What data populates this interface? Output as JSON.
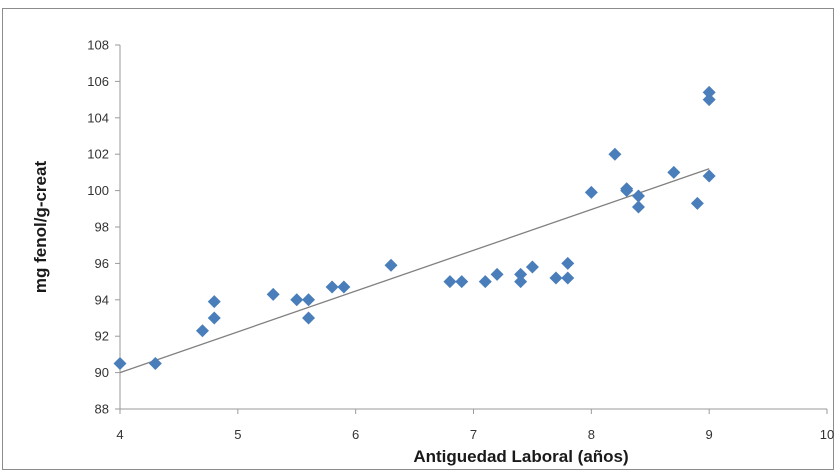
{
  "chart_data": {
    "type": "scatter",
    "title": "",
    "xlabel": "Antiguedad Laboral (años)",
    "ylabel": "mg fenol/g-creat",
    "xlim": [
      4,
      10
    ],
    "ylim": [
      88,
      108
    ],
    "x_ticks": [
      "4",
      "5",
      "6",
      "7",
      "8",
      "9",
      "10"
    ],
    "y_ticks": [
      "88",
      "90",
      "92",
      "94",
      "96",
      "98",
      "100",
      "102",
      "104",
      "106",
      "108"
    ],
    "grid": false,
    "legend": "none",
    "marker": "diamond",
    "marker_color": "#4a7ebb",
    "trendline": {
      "type": "linear",
      "from": [
        4,
        90.0
      ],
      "to": [
        9,
        101.2
      ],
      "color": "#808080"
    },
    "series": [
      {
        "points": [
          [
            4.0,
            90.5
          ],
          [
            4.3,
            90.5
          ],
          [
            4.7,
            92.3
          ],
          [
            4.8,
            93.0
          ],
          [
            4.8,
            93.9
          ],
          [
            5.3,
            94.3
          ],
          [
            5.5,
            94.0
          ],
          [
            5.6,
            94.0
          ],
          [
            5.6,
            93.0
          ],
          [
            5.8,
            94.7
          ],
          [
            5.9,
            94.7
          ],
          [
            6.3,
            95.9
          ],
          [
            6.8,
            95.0
          ],
          [
            6.9,
            95.0
          ],
          [
            7.1,
            95.0
          ],
          [
            7.2,
            95.4
          ],
          [
            7.4,
            95.4
          ],
          [
            7.4,
            95.0
          ],
          [
            7.5,
            95.8
          ],
          [
            7.7,
            95.2
          ],
          [
            7.8,
            95.2
          ],
          [
            7.8,
            96.0
          ],
          [
            8.0,
            99.9
          ],
          [
            8.2,
            102.0
          ],
          [
            8.3,
            100.0
          ],
          [
            8.3,
            100.1
          ],
          [
            8.4,
            99.7
          ],
          [
            8.4,
            99.1
          ],
          [
            8.7,
            101.0
          ],
          [
            8.9,
            99.3
          ],
          [
            9.0,
            100.8
          ],
          [
            9.0,
            105.0
          ],
          [
            9.0,
            105.4
          ]
        ]
      }
    ]
  }
}
